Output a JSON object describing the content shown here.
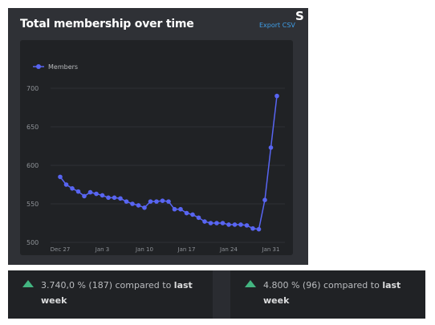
{
  "header": {
    "title": "Total membership over time",
    "export_label": "Export CSV",
    "next_section_initial": "S"
  },
  "chart_data": {
    "type": "line",
    "title": "Total membership over time",
    "legend": "top-left",
    "grid": true,
    "ylim": [
      500,
      700
    ],
    "y_ticks": [
      "700",
      "650",
      "600",
      "550",
      "500"
    ],
    "x_ticks": [
      "Dec 27",
      "Jan 3",
      "Jan 10",
      "Jan 17",
      "Jan 24",
      "Jan 31"
    ],
    "series": [
      {
        "name": "Members",
        "color": "#5865f2",
        "values": [
          585,
          575,
          570,
          566,
          560,
          565,
          563,
          561,
          558,
          558,
          557,
          553,
          550,
          548,
          545,
          553,
          553,
          554,
          553,
          543,
          543,
          538,
          536,
          532,
          527,
          525,
          525,
          525,
          523,
          523,
          523,
          522,
          518,
          517,
          555,
          623,
          690
        ]
      }
    ]
  },
  "stats": [
    {
      "change": "3.740,0 % (187) compared to",
      "period": "last week",
      "trend_color": "#43b581"
    },
    {
      "change": "4.800 % (96) compared to",
      "period": "last week",
      "trend_color": "#43b581"
    }
  ]
}
